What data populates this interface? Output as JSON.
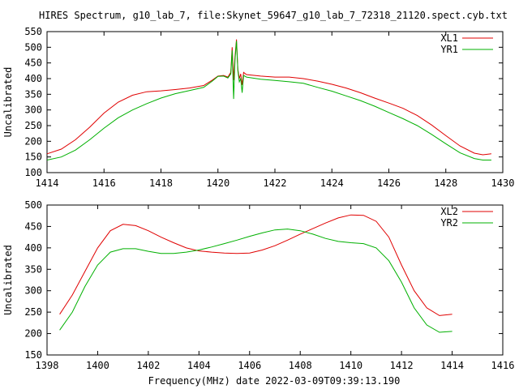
{
  "title": "HIRES Spectrum, g10_lab_7, file:Skynet_59647_g10_lab_7_72318_21120.spect.cyb.txt",
  "xlabel": "Frequency(MHz) date 2022-03-09T09:39:13.190",
  "colors": {
    "red": "#e00000",
    "green": "#00b000",
    "axis": "#000000"
  },
  "chart_data": [
    {
      "type": "line",
      "ylabel": "Uncalibrated",
      "xlim": [
        1414,
        1430
      ],
      "ylim": [
        100,
        550
      ],
      "xticks": [
        1414,
        1416,
        1418,
        1420,
        1422,
        1424,
        1426,
        1428,
        1430
      ],
      "yticks": [
        100,
        150,
        200,
        250,
        300,
        350,
        400,
        450,
        500,
        550
      ],
      "legend": "top-right",
      "series": [
        {
          "name": "XL1",
          "color": "#e00000",
          "x": [
            1414.0,
            1414.5,
            1415.0,
            1415.5,
            1416.0,
            1416.5,
            1417.0,
            1417.5,
            1418.0,
            1418.5,
            1419.0,
            1419.5,
            1419.8,
            1420.0,
            1420.2,
            1420.35,
            1420.45,
            1420.5,
            1420.55,
            1420.6,
            1420.65,
            1420.7,
            1420.75,
            1420.8,
            1420.85,
            1420.9,
            1421.0,
            1421.5,
            1422.0,
            1422.5,
            1423.0,
            1423.5,
            1424.0,
            1424.5,
            1425.0,
            1425.5,
            1426.0,
            1426.5,
            1427.0,
            1427.5,
            1428.0,
            1428.5,
            1429.0,
            1429.3,
            1429.6
          ],
          "y": [
            160,
            175,
            205,
            245,
            290,
            325,
            347,
            358,
            361,
            365,
            370,
            378,
            395,
            408,
            410,
            405,
            420,
            500,
            395,
            470,
            525,
            430,
            400,
            415,
            380,
            420,
            413,
            408,
            405,
            405,
            400,
            392,
            382,
            370,
            355,
            338,
            322,
            305,
            282,
            252,
            218,
            185,
            162,
            157,
            160
          ]
        },
        {
          "name": "YR1",
          "color": "#00b000",
          "x": [
            1414.0,
            1414.5,
            1415.0,
            1415.5,
            1416.0,
            1416.5,
            1417.0,
            1417.5,
            1418.0,
            1418.5,
            1419.0,
            1419.5,
            1419.8,
            1420.0,
            1420.2,
            1420.35,
            1420.45,
            1420.5,
            1420.55,
            1420.6,
            1420.65,
            1420.7,
            1420.75,
            1420.8,
            1420.85,
            1420.9,
            1421.0,
            1421.5,
            1422.0,
            1422.5,
            1423.0,
            1423.5,
            1424.0,
            1424.5,
            1425.0,
            1425.5,
            1426.0,
            1426.5,
            1427.0,
            1427.5,
            1428.0,
            1428.5,
            1429.0,
            1429.3,
            1429.6
          ],
          "y": [
            140,
            150,
            172,
            205,
            242,
            275,
            300,
            320,
            338,
            352,
            362,
            372,
            392,
            407,
            408,
            402,
            415,
            490,
            335,
            460,
            520,
            425,
            390,
            400,
            355,
            410,
            405,
            398,
            394,
            390,
            385,
            372,
            360,
            345,
            330,
            312,
            292,
            272,
            250,
            222,
            192,
            163,
            145,
            140,
            140
          ]
        }
      ]
    },
    {
      "type": "line",
      "ylabel": "Uncalibrated",
      "xlim": [
        1398,
        1416
      ],
      "ylim": [
        150,
        500
      ],
      "xticks": [
        1398,
        1400,
        1402,
        1404,
        1406,
        1408,
        1410,
        1412,
        1414,
        1416
      ],
      "yticks": [
        150,
        200,
        250,
        300,
        350,
        400,
        450,
        500
      ],
      "legend": "top-right",
      "series": [
        {
          "name": "XL2",
          "color": "#e00000",
          "x": [
            1398.5,
            1399.0,
            1399.5,
            1400.0,
            1400.5,
            1401.0,
            1401.5,
            1402.0,
            1402.5,
            1403.0,
            1403.5,
            1404.0,
            1404.5,
            1405.0,
            1405.5,
            1406.0,
            1406.5,
            1407.0,
            1407.5,
            1408.0,
            1408.5,
            1409.0,
            1409.5,
            1410.0,
            1410.5,
            1411.0,
            1411.5,
            1412.0,
            1412.5,
            1413.0,
            1413.5,
            1414.0
          ],
          "y": [
            245,
            290,
            345,
            400,
            440,
            455,
            452,
            440,
            425,
            412,
            400,
            393,
            390,
            388,
            387,
            388,
            395,
            405,
            418,
            432,
            445,
            458,
            470,
            477,
            476,
            462,
            425,
            360,
            300,
            260,
            242,
            245
          ]
        },
        {
          "name": "YR2",
          "color": "#00b000",
          "x": [
            1398.5,
            1399.0,
            1399.5,
            1400.0,
            1400.5,
            1401.0,
            1401.5,
            1402.0,
            1402.5,
            1403.0,
            1403.5,
            1404.0,
            1404.5,
            1405.0,
            1405.5,
            1406.0,
            1406.5,
            1407.0,
            1407.5,
            1408.0,
            1408.5,
            1409.0,
            1409.5,
            1410.0,
            1410.5,
            1411.0,
            1411.5,
            1412.0,
            1412.5,
            1413.0,
            1413.5,
            1414.0
          ],
          "y": [
            208,
            250,
            310,
            360,
            390,
            398,
            398,
            392,
            387,
            387,
            390,
            395,
            402,
            410,
            418,
            427,
            435,
            442,
            444,
            440,
            432,
            422,
            415,
            412,
            410,
            400,
            370,
            320,
            260,
            220,
            203,
            205
          ]
        }
      ]
    }
  ]
}
